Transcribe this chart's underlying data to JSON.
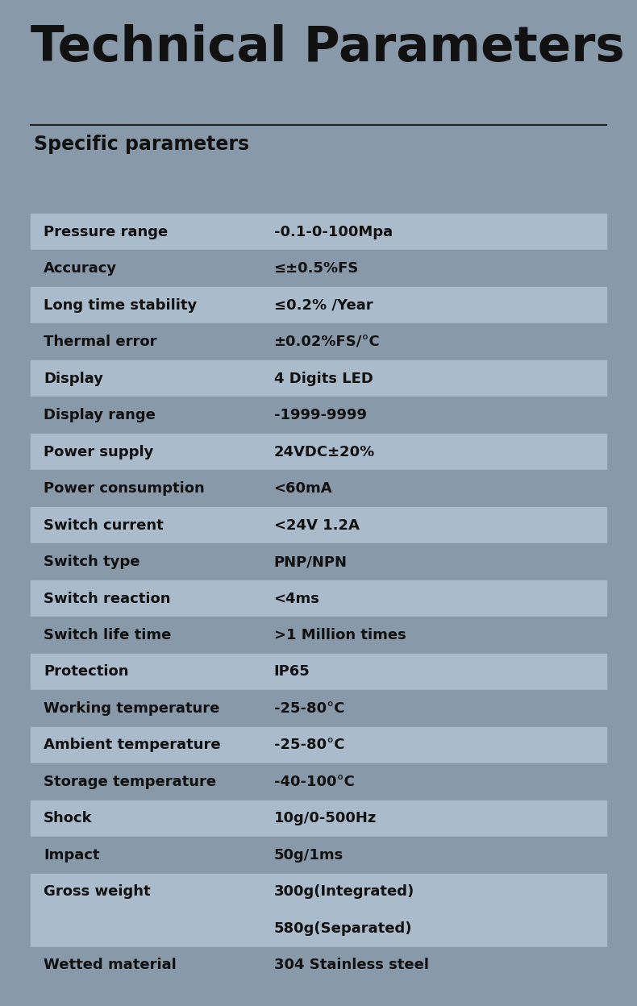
{
  "title": "Technical Parameters",
  "subtitle": "Specific parameters",
  "bg_color": "#8899aa",
  "row_color_light": "#aabbcc",
  "row_color_dark": "#8899aa",
  "text_color_dark": "#111111",
  "title_color": "#111111",
  "line_color": "#222222",
  "rows": [
    {
      "param": "Pressure range",
      "value": "-0.1-0-100Mpa",
      "highlight": true
    },
    {
      "param": "Accuracy",
      "value": "≤±0.5%FS",
      "highlight": false
    },
    {
      "param": "Long time stability",
      "value": "≤0.2% /Year",
      "highlight": true
    },
    {
      "param": "Thermal error",
      "value": "±0.02%FS/°C",
      "highlight": false
    },
    {
      "param": "Display",
      "value": "4 Digits LED",
      "highlight": true
    },
    {
      "param": "Display range",
      "value": "-1999-9999",
      "highlight": false
    },
    {
      "param": "Power supply",
      "value": "24VDC±20%",
      "highlight": true
    },
    {
      "param": "Power consumption",
      "value": "<60mA",
      "highlight": false
    },
    {
      "param": "Switch current",
      "value": "<24V 1.2A",
      "highlight": true
    },
    {
      "param": "Switch type",
      "value": "PNP/NPN",
      "highlight": false
    },
    {
      "param": "Switch reaction",
      "value": "<4ms",
      "highlight": true
    },
    {
      "param": "Switch life time",
      "value": ">1 Million times",
      "highlight": false
    },
    {
      "param": "Protection",
      "value": "IP65",
      "highlight": true
    },
    {
      "param": "Working temperature",
      "value": "-25-80°C",
      "highlight": false
    },
    {
      "param": "Ambient temperature",
      "value": "-25-80°C",
      "highlight": true
    },
    {
      "param": "Storage temperature",
      "value": "-40-100°C",
      "highlight": false
    },
    {
      "param": "Shock",
      "value": "10g/0-500Hz",
      "highlight": true
    },
    {
      "param": "Impact",
      "value": "50g/1ms",
      "highlight": false
    },
    {
      "param": "Gross weight",
      "value": "300g(Integrated)",
      "highlight": true
    },
    {
      "param": "",
      "value": "580g(Separated)",
      "highlight": true
    },
    {
      "param": "Wetted material",
      "value": "304 Stainless steel",
      "highlight": false
    }
  ]
}
